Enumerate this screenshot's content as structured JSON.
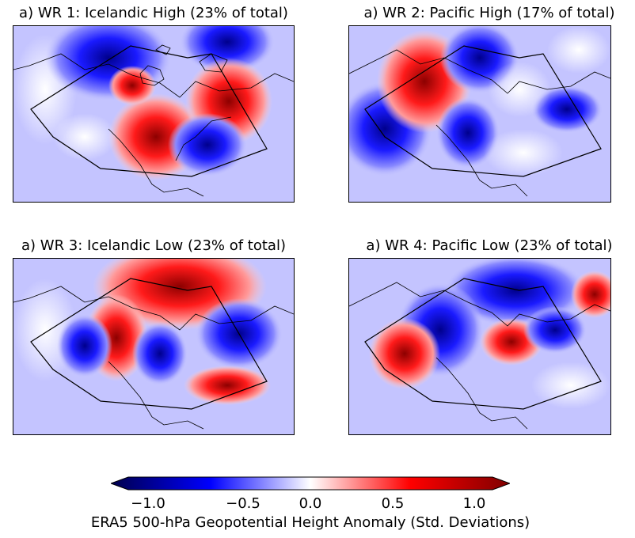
{
  "panels": [
    {
      "title": "a) WR 1: Icelandic High (23% of total)"
    },
    {
      "title": "a) WR 2: Pacific High (17% of total)"
    },
    {
      "title": "a) WR 3: Icelandic Low (23% of total)"
    },
    {
      "title": "a) WR 4: Pacific Low (23% of total)"
    }
  ],
  "colorbar": {
    "label": "ERA5 500-hPa Geopotential Height Anomaly (Std. Deviations)",
    "ticks": [
      "−1.0",
      "−0.5",
      "0.0",
      "0.5",
      "1.0"
    ],
    "range": [
      -1.2,
      1.2
    ],
    "extend": "both",
    "colormap": "seismic",
    "colors": {
      "low": "#00004c",
      "mid_low": "#0000ff",
      "zero": "#ffffff",
      "mid_high": "#ff0000",
      "high": "#7f0000"
    }
  }
}
